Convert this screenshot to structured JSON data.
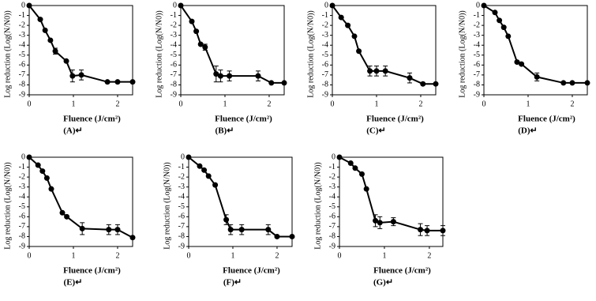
{
  "chart_data": [
    {
      "type": "line",
      "caption": "(A)↵",
      "xlabel": "Fluence (J/cm²)",
      "ylabel": "Log reduction (Log(N/N0))",
      "x": [
        0,
        0.25,
        0.36,
        0.48,
        0.59,
        0.84,
        0.98,
        1.18,
        1.77,
        2.0,
        2.34
      ],
      "xlim": [
        0,
        2.34
      ],
      "xticks": [
        0,
        1,
        2
      ],
      "ylim": [
        -9,
        0
      ],
      "yticks": [
        0,
        -1,
        -2,
        -3,
        -4,
        -5,
        -6,
        -7,
        -8,
        -9
      ],
      "series": [
        {
          "color": "#000000",
          "values": [
            0,
            -1.4,
            -2.5,
            -3.5,
            -4.6,
            -5.6,
            -7.1,
            -7.0,
            -7.7,
            -7.7,
            -7.7
          ],
          "errors": [
            null,
            null,
            null,
            null,
            0.3,
            null,
            0.6,
            0.5,
            null,
            null,
            null
          ]
        }
      ]
    },
    {
      "type": "line",
      "caption": "(B)↵",
      "xlabel": "Fluence (J/cm²)",
      "ylabel": "Log reduction (Log(N/N0))",
      "x": [
        0,
        0.25,
        0.35,
        0.45,
        0.55,
        0.8,
        0.9,
        1.1,
        1.75,
        2.05,
        2.34
      ],
      "xlim": [
        0,
        2.34
      ],
      "xticks": [
        0,
        1,
        2
      ],
      "ylim": [
        -9,
        0
      ],
      "yticks": [
        0,
        -1,
        -2,
        -3,
        -4,
        -5,
        -6,
        -7,
        -8,
        -9
      ],
      "series": [
        {
          "color": "#000000",
          "values": [
            0,
            -1.6,
            -2.6,
            -3.9,
            -4.2,
            -6.9,
            -7.1,
            -7.1,
            -7.1,
            -7.8,
            -7.8
          ],
          "errors": [
            null,
            null,
            null,
            null,
            0.3,
            0.8,
            0.6,
            0.5,
            0.5,
            null,
            null
          ]
        }
      ]
    },
    {
      "type": "line",
      "caption": "(C)↵",
      "xlabel": "Fluence (J/cm²)",
      "ylabel": "Log reduction (Log(N/N0))",
      "x": [
        0,
        0.2,
        0.35,
        0.5,
        0.6,
        0.85,
        1.0,
        1.2,
        1.75,
        2.05,
        2.34
      ],
      "xlim": [
        0,
        2.34
      ],
      "xticks": [
        0,
        1,
        2
      ],
      "ylim": [
        -9,
        0
      ],
      "yticks": [
        0,
        -1,
        -2,
        -3,
        -4,
        -5,
        -6,
        -7,
        -8,
        -9
      ],
      "series": [
        {
          "color": "#000000",
          "values": [
            0,
            -1.2,
            -2.0,
            -3.1,
            -4.6,
            -6.6,
            -6.6,
            -6.6,
            -7.3,
            -7.9,
            -7.9
          ],
          "errors": [
            null,
            null,
            null,
            null,
            null,
            0.5,
            0.5,
            0.5,
            0.5,
            null,
            null
          ]
        }
      ]
    },
    {
      "type": "line",
      "caption": "(D)↵",
      "xlabel": "Fluence (J/cm²)",
      "ylabel": "Log reduction (Log(N/N0))",
      "x": [
        0,
        0.25,
        0.35,
        0.45,
        0.55,
        0.75,
        0.85,
        1.2,
        1.8,
        2.0,
        2.34
      ],
      "xlim": [
        0,
        2.34
      ],
      "xticks": [
        0,
        1,
        2
      ],
      "ylim": [
        -9,
        0
      ],
      "yticks": [
        0,
        -1,
        -2,
        -3,
        -4,
        -5,
        -6,
        -7,
        -8,
        -9
      ],
      "series": [
        {
          "color": "#000000",
          "values": [
            0,
            -0.7,
            -1.5,
            -2.2,
            -3.1,
            -5.7,
            -5.9,
            -7.2,
            -7.8,
            -7.8,
            -7.8
          ],
          "errors": [
            null,
            null,
            null,
            null,
            null,
            null,
            null,
            0.4,
            null,
            null,
            null
          ]
        }
      ]
    },
    {
      "type": "line",
      "caption": "(E)↵",
      "xlabel": "Fluence (J/cm²)",
      "ylabel": "Log reduction (Log(N/N0))",
      "x": [
        0,
        0.2,
        0.3,
        0.4,
        0.5,
        0.75,
        0.85,
        1.2,
        1.8,
        2.0,
        2.34
      ],
      "xlim": [
        0,
        2.34
      ],
      "xticks": [
        0,
        1,
        2
      ],
      "ylim": [
        -9,
        0
      ],
      "yticks": [
        0,
        -1,
        -2,
        -3,
        -4,
        -5,
        -6,
        -7,
        -8,
        -9
      ],
      "series": [
        {
          "color": "#000000",
          "values": [
            0,
            -0.8,
            -1.4,
            -2.1,
            -3.2,
            -5.6,
            -6.0,
            -7.2,
            -7.3,
            -7.3,
            -8.1
          ],
          "errors": [
            null,
            null,
            null,
            null,
            null,
            null,
            null,
            0.6,
            0.5,
            0.5,
            null
          ]
        }
      ]
    },
    {
      "type": "line",
      "caption": "(F)↵",
      "xlabel": "Fluence (J/cm²)",
      "ylabel": "Log reduction (Log(N/N0))",
      "x": [
        0,
        0.25,
        0.35,
        0.45,
        0.6,
        0.85,
        0.95,
        1.2,
        1.8,
        2.0,
        2.34
      ],
      "xlim": [
        0,
        2.34
      ],
      "xticks": [
        0,
        1,
        2
      ],
      "ylim": [
        -9,
        0
      ],
      "yticks": [
        0,
        -1,
        -2,
        -3,
        -4,
        -5,
        -6,
        -7,
        -8,
        -9
      ],
      "series": [
        {
          "color": "#000000",
          "values": [
            0,
            -0.9,
            -1.3,
            -1.9,
            -2.8,
            -6.3,
            -7.3,
            -7.3,
            -7.3,
            -8.0,
            -8.0
          ],
          "errors": [
            null,
            null,
            null,
            null,
            null,
            0.5,
            0.5,
            0.5,
            0.5,
            null,
            null
          ]
        }
      ]
    },
    {
      "type": "line",
      "caption": "(G)↵",
      "xlabel": "Fluence (J/cm²)",
      "ylabel": "Log reduction (Log(N/N0))",
      "x": [
        0,
        0.25,
        0.35,
        0.5,
        0.6,
        0.8,
        0.9,
        1.2,
        1.8,
        1.95,
        2.3
      ],
      "xlim": [
        0,
        2.3
      ],
      "xticks": [
        0,
        1,
        2
      ],
      "ylim": [
        -9,
        0
      ],
      "yticks": [
        0,
        -1,
        -2,
        -3,
        -4,
        -5,
        -6,
        -7,
        -8,
        -9
      ],
      "series": [
        {
          "color": "#000000",
          "values": [
            0,
            -0.6,
            -1.1,
            -1.7,
            -3.2,
            -6.4,
            -6.6,
            -6.5,
            -7.3,
            -7.4,
            -7.4
          ],
          "errors": [
            null,
            null,
            null,
            null,
            null,
            0.6,
            0.6,
            0.4,
            0.6,
            0.5,
            0.5
          ]
        }
      ]
    }
  ]
}
